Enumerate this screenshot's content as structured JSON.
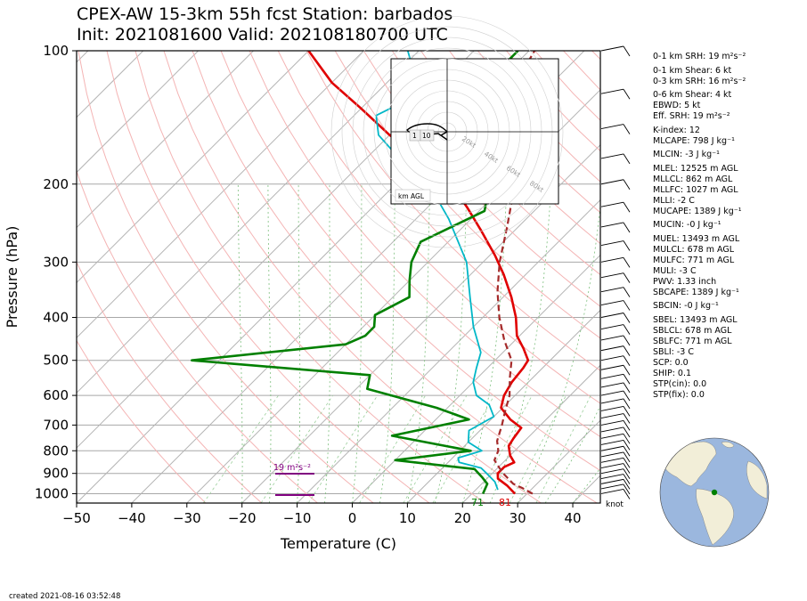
{
  "title": {
    "line1": "CPEX-AW 15-3km  55h fcst  Station: barbados",
    "line2": "Init: 2021081600  Valid: 202108180700 UTC"
  },
  "created": "created 2021-08-16 03:52:48",
  "chart_data": {
    "type": "line",
    "xlabel": "Temperature (C)",
    "ylabel": "Pressure (hPa)",
    "xlim": [
      -50,
      45
    ],
    "ylim": [
      1050,
      100
    ],
    "y_log_scale": true,
    "x_ticks": [
      "−50",
      "−40",
      "−30",
      "−20",
      "−10",
      "0",
      "10",
      "20",
      "30",
      "40"
    ],
    "x_tick_values": [
      -50,
      -40,
      -30,
      -20,
      -10,
      0,
      10,
      20,
      30,
      40
    ],
    "y_ticks": [
      "100",
      "200",
      "300",
      "400",
      "500",
      "600",
      "700",
      "800",
      "900",
      "1000"
    ],
    "y_tick_values": [
      100,
      200,
      300,
      400,
      500,
      600,
      700,
      800,
      900,
      1000
    ],
    "skew_degrees": 45,
    "grid": true,
    "series": [
      {
        "color": "#e00000",
        "width": 2.6,
        "dash": "",
        "points": [
          [
            27.8,
            1000
          ],
          [
            25,
            960
          ],
          [
            22,
            925
          ],
          [
            21,
            900
          ],
          [
            21,
            870
          ],
          [
            22,
            850
          ],
          [
            20,
            820
          ],
          [
            18,
            780
          ],
          [
            17.5,
            750
          ],
          [
            17,
            710
          ],
          [
            13.5,
            680
          ],
          [
            9.7,
            640
          ],
          [
            8,
            600
          ],
          [
            7,
            560
          ],
          [
            6.5,
            520
          ],
          [
            6,
            500
          ],
          [
            3,
            470
          ],
          [
            -0.5,
            440
          ],
          [
            -4,
            400
          ],
          [
            -8.5,
            360
          ],
          [
            -14,
            320
          ],
          [
            -19,
            290
          ],
          [
            -26,
            255
          ],
          [
            -33,
            225
          ],
          [
            -40,
            200
          ],
          [
            -50,
            175
          ],
          [
            -60,
            155
          ],
          [
            -70,
            135
          ],
          [
            -80,
            118
          ],
          [
            -90,
            100
          ]
        ]
      },
      {
        "color": "#00b7c7",
        "width": 1.8,
        "dash": "",
        "points": [
          [
            24,
            980
          ],
          [
            22,
            940
          ],
          [
            19,
            900
          ],
          [
            17,
            875
          ],
          [
            12,
            850
          ],
          [
            11,
            830
          ],
          [
            14,
            800
          ],
          [
            10,
            765
          ],
          [
            8,
            720
          ],
          [
            10,
            670
          ],
          [
            7,
            630
          ],
          [
            3,
            600
          ],
          [
            0,
            560
          ],
          [
            -2,
            520
          ],
          [
            -4,
            480
          ],
          [
            -10,
            420
          ],
          [
            -16,
            360
          ],
          [
            -23,
            300
          ],
          [
            -34,
            240
          ],
          [
            -44,
            200
          ],
          [
            -54,
            175
          ],
          [
            -62,
            155
          ],
          [
            -66,
            140
          ],
          [
            -62,
            125
          ],
          [
            -72,
            100
          ]
        ]
      },
      {
        "color": "#008000",
        "width": 2.6,
        "dash": "",
        "points": [
          [
            22,
            1000
          ],
          [
            21,
            950
          ],
          [
            19,
            920
          ],
          [
            16,
            880
          ],
          [
            0,
            840
          ],
          [
            12,
            800
          ],
          [
            -5,
            740
          ],
          [
            6,
            680
          ],
          [
            -2,
            640
          ],
          [
            -18,
            580
          ],
          [
            -20,
            540
          ],
          [
            -55,
            500
          ],
          [
            -30,
            460
          ],
          [
            -28,
            440
          ],
          [
            -28,
            420
          ],
          [
            -30,
            395
          ],
          [
            -27,
            360
          ],
          [
            -30,
            330
          ],
          [
            -33,
            300
          ],
          [
            -35,
            270
          ],
          [
            -29,
            230
          ],
          [
            -33,
            200
          ],
          [
            -50,
            160
          ],
          [
            -50,
            140
          ],
          [
            -52,
            110
          ],
          [
            -52,
            100
          ]
        ]
      },
      {
        "color": "#a52a2a",
        "width": 2.2,
        "dash": "7,4",
        "points": [
          [
            31,
            1000
          ],
          [
            28,
            970
          ],
          [
            25.7,
            950
          ],
          [
            23.5,
            920
          ],
          [
            22,
            900
          ],
          [
            20,
            870
          ],
          [
            18,
            840
          ],
          [
            17,
            800
          ],
          [
            15,
            760
          ],
          [
            13,
            700
          ],
          [
            11,
            650
          ],
          [
            9,
            600
          ],
          [
            6,
            550
          ],
          [
            3,
            500
          ],
          [
            -2,
            450
          ],
          [
            -7,
            400
          ],
          [
            -12,
            350
          ],
          [
            -17,
            300
          ],
          [
            -22,
            250
          ],
          [
            -27,
            210
          ],
          [
            -32,
            180
          ],
          [
            -37,
            155
          ],
          [
            -42,
            130
          ],
          [
            -47,
            115
          ],
          [
            -49,
            100
          ]
        ]
      }
    ],
    "surface_labels": {
      "dewpoint": "71",
      "temperature": "81"
    },
    "wind_unit": "knot",
    "srh_label": "19 m²s⁻²",
    "hodograph": {
      "ring_labels": [
        "20kt",
        "40kt",
        "60kt",
        "80kt"
      ],
      "height_labels": [
        "1",
        "10"
      ],
      "legend": "km AGL"
    }
  },
  "indices": [
    "0-1 km SRH: 19 m²s⁻²",
    "0-1 km Shear: 6 kt",
    "0-3 km SRH: 16 m²s⁻²",
    "0-6 km Shear: 4 kt",
    "EBWD: 5 kt",
    "Eff. SRH: 19 m²s⁻²",
    "K-index: 12",
    "MLCAPE: 798 J kg⁻¹",
    "MLCIN: -3 J kg⁻¹",
    "MLEL: 12525 m AGL",
    "MLLCL: 862 m AGL",
    "MLLFC: 1027 m AGL",
    "MLLI: -2 C",
    "MUCAPE: 1389 J kg⁻¹",
    "MUCIN: -0 J kg⁻¹",
    "MUEL: 13493 m AGL",
    "MULCL: 678 m AGL",
    "MULFC: 771 m AGL",
    "MULI: -3 C",
    "PWV: 1.33 inch",
    "SBCAPE: 1389 J kg⁻¹",
    "SBCIN: -0 J kg⁻¹",
    "SBEL: 13493 m AGL",
    "SBLCL: 678 m AGL",
    "SBLFC: 771 m AGL",
    "SBLI: -3 C",
    "SCP: 0.0",
    "SHIP: 0.1",
    "STP(cin): 0.0",
    "STP(fix): 0.0"
  ]
}
